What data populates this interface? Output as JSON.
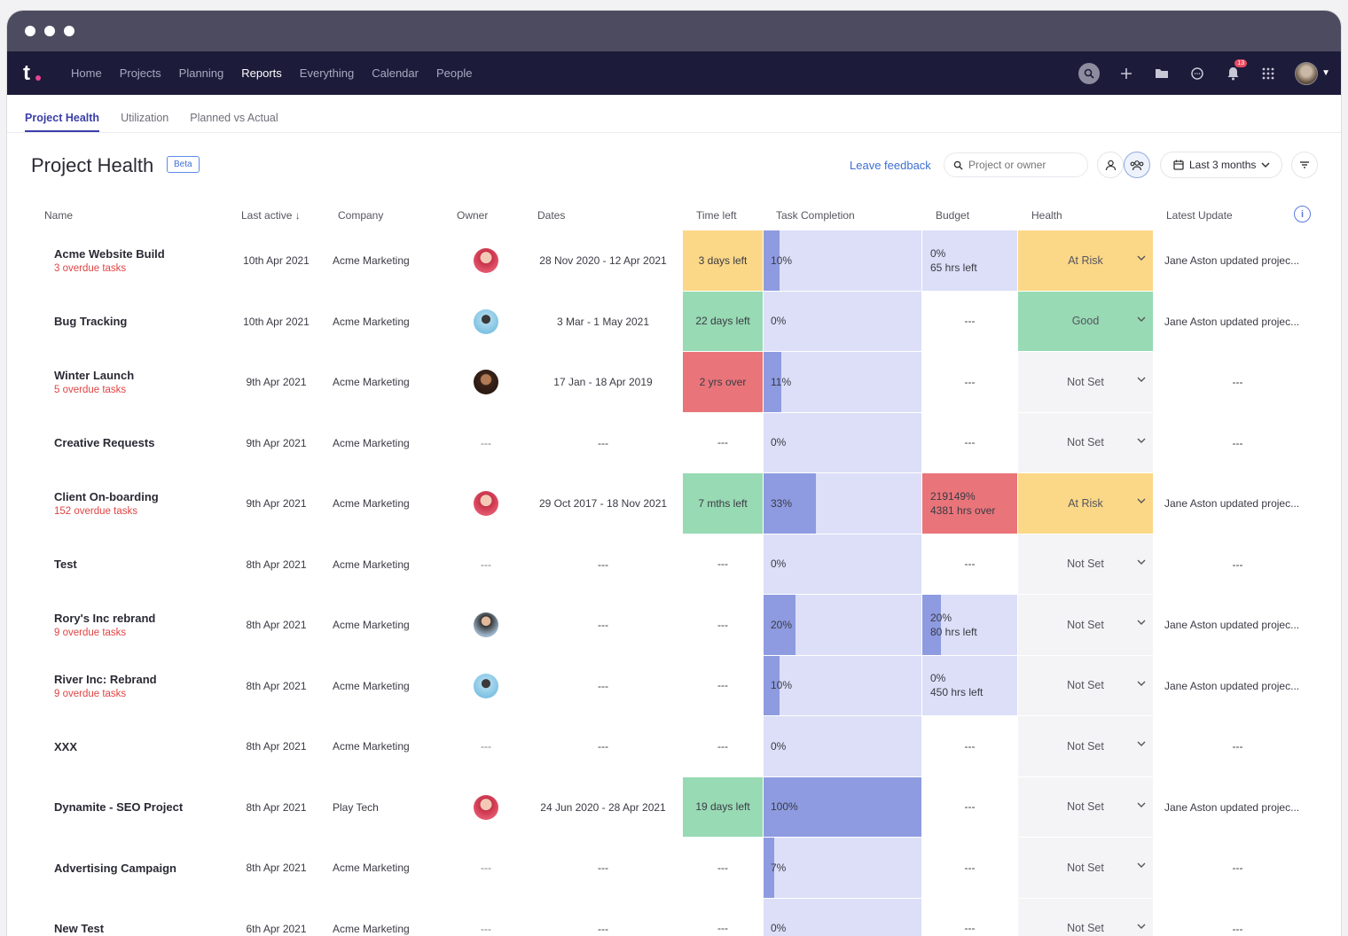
{
  "nav": {
    "logo": "t",
    "items": [
      "Home",
      "Projects",
      "Planning",
      "Reports",
      "Everything",
      "Calendar",
      "People"
    ],
    "active": "Reports",
    "notification_count": "13"
  },
  "subtabs": [
    "Project Health",
    "Utilization",
    "Planned vs Actual"
  ],
  "page": {
    "title": "Project Health",
    "beta": "Beta",
    "leave_feedback": "Leave feedback",
    "search_placeholder": "Project or owner",
    "date_range": "Last 3 months"
  },
  "columns": {
    "name": "Name",
    "last_active": "Last active",
    "company": "Company",
    "owner": "Owner",
    "dates": "Dates",
    "time_left": "Time left",
    "task_completion": "Task Completion",
    "budget": "Budget",
    "health": "Health",
    "latest_update": "Latest Update"
  },
  "colors": {
    "yellow": "#fbd888",
    "green": "#98dab4",
    "red": "#e9757a",
    "lilac": "#dcdff7",
    "grey": "#f4f4f6",
    "bar": "#8e9be0"
  },
  "rows": [
    {
      "name": "Acme Website Build",
      "overdue": "3 overdue tasks",
      "last_active": "10th Apr 2021",
      "company": "Acme Marketing",
      "owner_avatar": "pink",
      "dates": "28 Nov 2020 - 12 Apr 2021",
      "time_left": "3 days left",
      "time_color": "yellow",
      "task_pct": 10,
      "task_label": "10%",
      "budget_pct": 0,
      "budget_l1": "0%",
      "budget_l2": "65 hrs left",
      "budget_color": "lilac",
      "health": "At Risk",
      "health_color": "yellow",
      "latest": "Jane Aston updated projec..."
    },
    {
      "name": "Bug Tracking",
      "overdue": "",
      "last_active": "10th Apr 2021",
      "company": "Acme Marketing",
      "owner_avatar": "blue",
      "dates": "3 Mar - 1 May 2021",
      "time_left": "22 days left",
      "time_color": "green",
      "task_pct": 0,
      "task_label": "0%",
      "budget_pct": 0,
      "budget_l1": "---",
      "budget_l2": "",
      "budget_color": "none",
      "health": "Good",
      "health_color": "green",
      "latest": "Jane Aston updated projec..."
    },
    {
      "name": "Winter Launch",
      "overdue": "5 overdue tasks",
      "last_active": "9th Apr 2021",
      "company": "Acme Marketing",
      "owner_avatar": "dark",
      "dates": "17 Jan - 18 Apr 2019",
      "time_left": "2 yrs over",
      "time_color": "red",
      "task_pct": 11,
      "task_label": "11%",
      "budget_pct": 0,
      "budget_l1": "---",
      "budget_l2": "",
      "budget_color": "none",
      "health": "Not Set",
      "health_color": "grey",
      "latest": "---"
    },
    {
      "name": "Creative Requests",
      "overdue": "",
      "last_active": "9th Apr 2021",
      "company": "Acme Marketing",
      "owner_avatar": "",
      "dates": "---",
      "time_left": "---",
      "time_color": "none",
      "task_pct": 0,
      "task_label": "0%",
      "budget_pct": 0,
      "budget_l1": "---",
      "budget_l2": "",
      "budget_color": "none",
      "health": "Not Set",
      "health_color": "grey",
      "latest": "---"
    },
    {
      "name": "Client On-boarding",
      "overdue": "152 overdue tasks",
      "last_active": "9th Apr 2021",
      "company": "Acme Marketing",
      "owner_avatar": "pink",
      "dates": "29 Oct 2017 - 18 Nov 2021",
      "time_left": "7 mths left",
      "time_color": "green",
      "task_pct": 33,
      "task_label": "33%",
      "budget_pct": 0,
      "budget_l1": "219149%",
      "budget_l2": "4381 hrs over",
      "budget_color": "red",
      "health": "At Risk",
      "health_color": "yellow",
      "latest": "Jane Aston updated projec..."
    },
    {
      "name": "Test",
      "overdue": "",
      "last_active": "8th Apr 2021",
      "company": "Acme Marketing",
      "owner_avatar": "",
      "dates": "---",
      "time_left": "---",
      "time_color": "none",
      "task_pct": 0,
      "task_label": "0%",
      "budget_pct": 0,
      "budget_l1": "---",
      "budget_l2": "",
      "budget_color": "none",
      "health": "Not Set",
      "health_color": "grey",
      "latest": "---"
    },
    {
      "name": "Rory's Inc rebrand",
      "overdue": "9 overdue tasks",
      "last_active": "8th Apr 2021",
      "company": "Acme Marketing",
      "owner_avatar": "man",
      "dates": "---",
      "time_left": "---",
      "time_color": "none",
      "task_pct": 20,
      "task_label": "20%",
      "budget_pct": 20,
      "budget_l1": "20%",
      "budget_l2": "80 hrs left",
      "budget_color": "lilac",
      "health": "Not Set",
      "health_color": "grey",
      "latest": "Jane Aston updated projec..."
    },
    {
      "name": "River Inc: Rebrand",
      "overdue": "9 overdue tasks",
      "last_active": "8th Apr 2021",
      "company": "Acme Marketing",
      "owner_avatar": "blue",
      "dates": "---",
      "time_left": "---",
      "time_color": "none",
      "task_pct": 10,
      "task_label": "10%",
      "budget_pct": 0,
      "budget_l1": "0%",
      "budget_l2": "450 hrs left",
      "budget_color": "lilac",
      "health": "Not Set",
      "health_color": "grey",
      "latest": "Jane Aston updated projec..."
    },
    {
      "name": "XXX",
      "overdue": "",
      "last_active": "8th Apr 2021",
      "company": "Acme Marketing",
      "owner_avatar": "",
      "dates": "---",
      "time_left": "---",
      "time_color": "none",
      "task_pct": 0,
      "task_label": "0%",
      "budget_pct": 0,
      "budget_l1": "---",
      "budget_l2": "",
      "budget_color": "none",
      "health": "Not Set",
      "health_color": "grey",
      "latest": "---"
    },
    {
      "name": "Dynamite - SEO Project",
      "overdue": "",
      "last_active": "8th Apr 2021",
      "company": "Play Tech",
      "owner_avatar": "pink",
      "dates": "24 Jun 2020 - 28 Apr 2021",
      "time_left": "19 days left",
      "time_color": "green",
      "task_pct": 100,
      "task_label": "100%",
      "budget_pct": 0,
      "budget_l1": "---",
      "budget_l2": "",
      "budget_color": "none",
      "health": "Not Set",
      "health_color": "grey",
      "latest": "Jane Aston updated projec..."
    },
    {
      "name": "Advertising Campaign",
      "overdue": "",
      "last_active": "8th Apr 2021",
      "company": "Acme Marketing",
      "owner_avatar": "",
      "dates": "---",
      "time_left": "---",
      "time_color": "none",
      "task_pct": 7,
      "task_label": "7%",
      "budget_pct": 0,
      "budget_l1": "---",
      "budget_l2": "",
      "budget_color": "none",
      "health": "Not Set",
      "health_color": "grey",
      "latest": "---"
    },
    {
      "name": "New Test",
      "overdue": "",
      "last_active": "6th Apr 2021",
      "company": "Acme Marketing",
      "owner_avatar": "",
      "dates": "---",
      "time_left": "---",
      "time_color": "none",
      "task_pct": 0,
      "task_label": "0%",
      "budget_pct": 0,
      "budget_l1": "---",
      "budget_l2": "",
      "budget_color": "none",
      "health": "Not Set",
      "health_color": "grey",
      "latest": "---"
    }
  ]
}
